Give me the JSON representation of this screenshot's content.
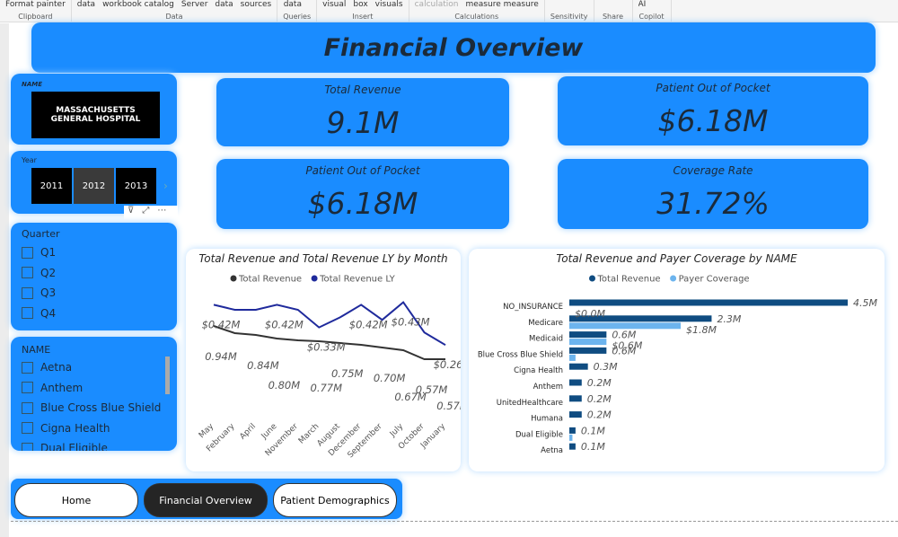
{
  "ribbon": {
    "groups": [
      {
        "items": [
          "Format painter"
        ],
        "label": "Clipboard"
      },
      {
        "items": [
          "data",
          "workbook catalog",
          "Server",
          "data",
          "sources"
        ],
        "label": "Data"
      },
      {
        "items": [
          "data"
        ],
        "label": "Queries"
      },
      {
        "items": [
          "visual",
          "box",
          "visuals"
        ],
        "label": "Insert"
      },
      {
        "items": [
          "calculation",
          "measure measure"
        ],
        "label": "Calculations"
      },
      {
        "items": [],
        "label": "Sensitivity"
      },
      {
        "items": [],
        "label": "Share"
      },
      {
        "items": [
          "AI"
        ],
        "label": "Copilot"
      }
    ]
  },
  "header": {
    "title": "Financial Overview"
  },
  "hospital_slicer": {
    "label": "NAME",
    "value": "MASSACHUSETTS GENERAL HOSPITAL"
  },
  "year_slicer": {
    "label": "Year",
    "options": [
      "2011",
      "2012",
      "2013"
    ]
  },
  "quarter_slicer": {
    "label": "Quarter",
    "options": [
      "Q1",
      "Q2",
      "Q3",
      "Q4"
    ]
  },
  "name_slicer": {
    "label": "NAME",
    "options": [
      "Aetna",
      "Anthem",
      "Blue Cross Blue Shield",
      "Cigna Health",
      "Dual Eligible"
    ]
  },
  "cards": [
    {
      "label": "Total Revenue",
      "value": "9.1M"
    },
    {
      "label": "Patient Out of Pocket",
      "value": "$6.18M"
    },
    {
      "label": "Patient Out of Pocket",
      "value": "$6.18M"
    },
    {
      "label": "Coverage Rate",
      "value": "31.72%"
    }
  ],
  "nav": {
    "buttons": [
      "Home",
      "Financial Overview",
      "Patient Demographics"
    ]
  },
  "chart_data": [
    {
      "type": "line",
      "title": "Total Revenue and Total Revenue LY by Month",
      "categories": [
        "May",
        "February",
        "April",
        "June",
        "November",
        "March",
        "August",
        "December",
        "September",
        "July",
        "October",
        "January"
      ],
      "ylim": [
        0,
        1.4
      ],
      "y2lim": [
        0,
        0.5
      ],
      "series": [
        {
          "name": "Total Revenue",
          "color": "#333333",
          "values": [
            0.94,
            0.86,
            0.84,
            0.8,
            0.78,
            0.77,
            0.75,
            0.73,
            0.7,
            0.67,
            0.57,
            0.57
          ],
          "value_labels": [
            "0.94M",
            null,
            "0.84M",
            "0.80M",
            null,
            "0.77M",
            "0.75M",
            null,
            "0.70M",
            "0.67M",
            "0.57M",
            "0.57M"
          ]
        },
        {
          "name": "Total Revenue LY",
          "color": "#1f2a9c",
          "axis": "y2",
          "values": [
            0.42,
            0.4,
            0.4,
            0.42,
            0.4,
            0.33,
            0.37,
            0.42,
            0.36,
            0.43,
            0.31,
            0.26
          ],
          "value_labels": [
            "$0.42M",
            null,
            null,
            "$0.42M",
            null,
            "$0.33M",
            null,
            "$0.42M",
            null,
            "$0.43M",
            null,
            "$0.26M"
          ]
        }
      ]
    },
    {
      "type": "hbar",
      "title": "Total Revenue and Payer Coverage by NAME",
      "categories": [
        "NO_INSURANCE",
        "Medicare",
        "Medicaid",
        "Blue Cross Blue Shield",
        "Cigna Health",
        "Anthem",
        "UnitedHealthcare",
        "Humana",
        "Dual Eligible",
        "Aetna"
      ],
      "xlim": [
        0,
        4.5
      ],
      "series": [
        {
          "name": "Total Revenue",
          "color": "#0f4c81",
          "values": [
            4.5,
            2.3,
            0.6,
            0.6,
            0.3,
            0.2,
            0.2,
            0.2,
            0.1,
            0.1
          ],
          "value_labels": [
            "4.5M",
            "2.3M",
            "0.6M",
            "0.6M",
            "0.3M",
            "0.2M",
            "0.2M",
            "0.2M",
            "0.1M",
            "0.1M"
          ]
        },
        {
          "name": "Payer Coverage",
          "color": "#6cb4ee",
          "values": [
            0,
            1.8,
            0.6,
            0.1,
            0,
            0,
            0,
            0,
            0.05,
            0
          ],
          "value_labels": [
            "$0.0M",
            "$1.8M",
            "$0.6M",
            null,
            null,
            null,
            null,
            null,
            null,
            null
          ]
        }
      ]
    }
  ]
}
